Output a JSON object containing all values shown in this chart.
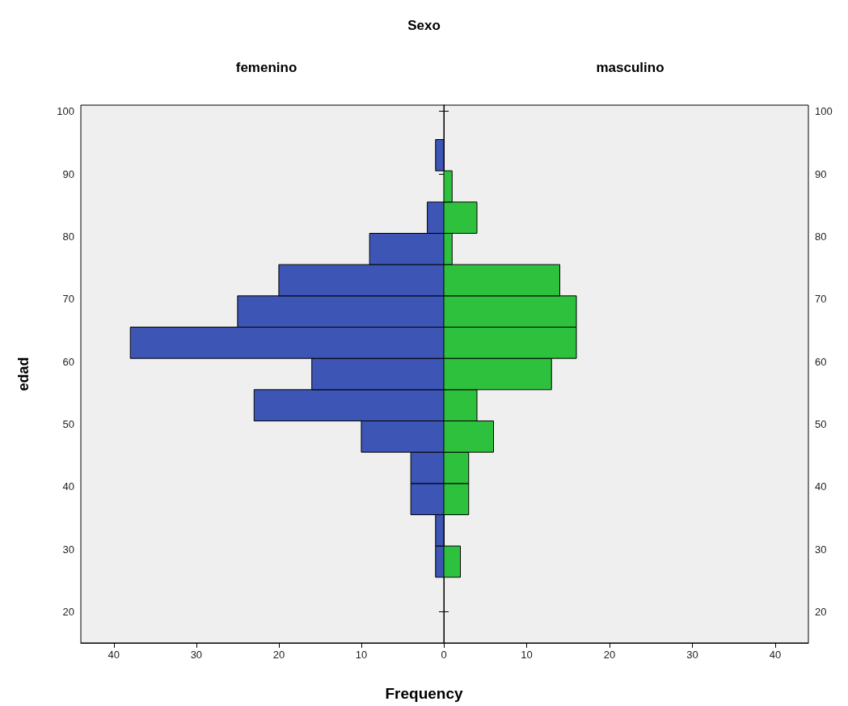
{
  "chart_data": [
    {
      "type": "histogram",
      "orientation": "horizontal",
      "title": "Sexo",
      "subtitle": "femenino",
      "xlabel": "Frequency",
      "ylabel": "edad",
      "bins": [
        25.5,
        30.5,
        35.5,
        40.5,
        45.5,
        50.5,
        55.5,
        60.5,
        65.5,
        70.5,
        75.5,
        80.5,
        85.5,
        90.5,
        95.5
      ],
      "values": [
        1,
        1,
        4,
        4,
        10,
        23,
        16,
        38,
        25,
        20,
        9,
        2,
        0,
        1
      ],
      "color": "#3d55b5",
      "xlim": [
        44,
        0
      ],
      "xticks": [
        40,
        30,
        20,
        10,
        0
      ],
      "ylim": [
        15,
        101
      ],
      "yticks": [
        20,
        30,
        40,
        50,
        60,
        70,
        80,
        90,
        100
      ]
    },
    {
      "type": "histogram",
      "orientation": "horizontal",
      "subtitle": "masculino",
      "bins": [
        25.5,
        30.5,
        35.5,
        40.5,
        45.5,
        50.5,
        55.5,
        60.5,
        65.5,
        70.5,
        75.5,
        80.5,
        85.5,
        90.5,
        95.5
      ],
      "values": [
        2,
        0,
        3,
        3,
        6,
        4,
        13,
        16,
        16,
        14,
        1,
        4,
        1,
        0
      ],
      "color": "#2ec13e",
      "xlim": [
        0,
        44
      ],
      "xticks": [
        {
          "value": 0,
          "label": null
        },
        10,
        20,
        30,
        40
      ],
      "ylim": [
        15,
        101
      ],
      "yticks": [
        20,
        30,
        40,
        50,
        60,
        70,
        80,
        90,
        100
      ]
    }
  ]
}
